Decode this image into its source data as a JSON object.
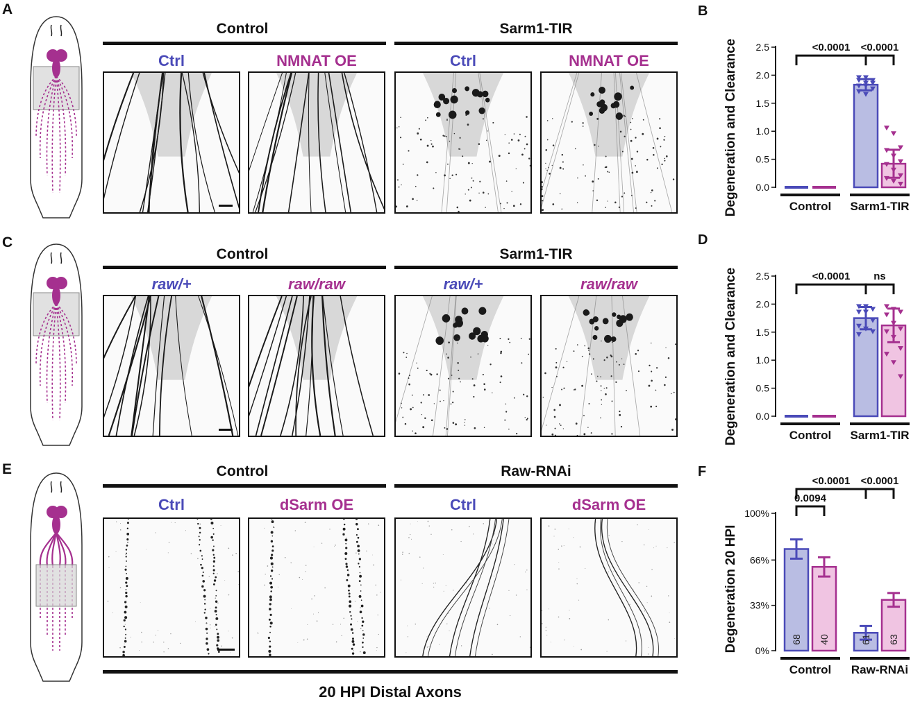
{
  "panels": {
    "A": {
      "letter": "A",
      "group_left": "Control",
      "group_right": "Sarm1-TIR",
      "subs": [
        "Ctrl",
        "NMNAT OE",
        "Ctrl",
        "NMNAT OE"
      ]
    },
    "C": {
      "letter": "C",
      "group_left": "Control",
      "group_right": "Sarm1-TIR",
      "subs": [
        "raw/+",
        "raw/raw",
        "raw/+",
        "raw/raw"
      ]
    },
    "E": {
      "letter": "E",
      "group_left": "Control",
      "group_right": "Raw-RNAi",
      "subs": [
        "Ctrl",
        "dSarm OE",
        "Ctrl",
        "dSarm OE"
      ],
      "footer": "20 HPI Distal Axons"
    }
  },
  "colors": {
    "blue": "#4a4ab8",
    "blue_fill": "#b9bde3",
    "magenta": "#a5308f",
    "magenta_fill": "#f0c4e2",
    "dark": "#111111"
  },
  "chart_data": [
    {
      "letter": "B",
      "type": "bar",
      "ylabel": "Degeneration and Clearance",
      "ylim": [
        0,
        2.5
      ],
      "yticks": [
        "0.0",
        "0.5",
        "1.0",
        "1.5",
        "2.0",
        "2.5"
      ],
      "groups": [
        "Control",
        "Sarm1-TIR"
      ],
      "bars": [
        {
          "group": "Control",
          "color": "blue",
          "mean": 0.0,
          "sd": 0.0
        },
        {
          "group": "Control",
          "color": "magenta",
          "mean": 0.0,
          "sd": 0.0
        },
        {
          "group": "Sarm1-TIR",
          "color": "blue",
          "mean": 1.83,
          "sd": 0.1,
          "points": [
            1.95,
            1.95,
            1.9,
            1.9,
            1.85,
            1.85,
            1.8,
            1.8,
            1.75,
            1.7,
            1.65
          ]
        },
        {
          "group": "Sarm1-TIR",
          "color": "magenta",
          "mean": 0.42,
          "sd": 0.25,
          "points": [
            1.05,
            0.95,
            0.7,
            0.65,
            0.55,
            0.45,
            0.4,
            0.3,
            0.2,
            0.15,
            0.1,
            0.05
          ]
        }
      ],
      "comparisons": [
        {
          "label": "<0.0001",
          "from": 0,
          "to": 2,
          "height": 2.3
        },
        {
          "label": "<0.0001",
          "from": 2,
          "to": 3,
          "height": 2.3
        }
      ]
    },
    {
      "letter": "D",
      "type": "bar",
      "ylabel": "Degeneration and Clearance",
      "ylim": [
        0,
        2.5
      ],
      "yticks": [
        "0.0",
        "0.5",
        "1.0",
        "1.5",
        "2.0",
        "2.5"
      ],
      "groups": [
        "Control",
        "Sarm1-TIR"
      ],
      "bars": [
        {
          "group": "Control",
          "color": "blue",
          "mean": 0.0,
          "sd": 0.0
        },
        {
          "group": "Control",
          "color": "magenta",
          "mean": 0.0,
          "sd": 0.0
        },
        {
          "group": "Sarm1-TIR",
          "color": "blue",
          "mean": 1.75,
          "sd": 0.2,
          "points": [
            1.95,
            1.95,
            1.9,
            1.85,
            1.85,
            1.7,
            1.6,
            1.55,
            1.5,
            1.45
          ]
        },
        {
          "group": "Sarm1-TIR",
          "color": "magenta",
          "mean": 1.62,
          "sd": 0.3,
          "points": [
            1.95,
            1.9,
            1.85,
            1.8,
            1.65,
            1.55,
            1.5,
            1.4,
            1.2,
            1.1,
            0.95,
            0.7
          ]
        }
      ],
      "comparisons": [
        {
          "label": "<0.0001",
          "from": 0,
          "to": 2,
          "height": 2.3
        },
        {
          "label": "ns",
          "from": 2,
          "to": 3,
          "height": 2.3
        }
      ]
    },
    {
      "letter": "F",
      "type": "bar",
      "ylabel": "Degeneration 20 HPI",
      "ylim": [
        0,
        100
      ],
      "ytick_values": [
        0,
        33,
        66,
        100
      ],
      "yticks": [
        "0%",
        "33%",
        "66%",
        "100%"
      ],
      "groups": [
        "Control",
        "Raw-RNAi"
      ],
      "bars": [
        {
          "group": "Control",
          "color": "blue",
          "mean": 74,
          "err": 7,
          "n": "68"
        },
        {
          "group": "Control",
          "color": "magenta",
          "mean": 61,
          "err": 7,
          "n": "40"
        },
        {
          "group": "Raw-RNAi",
          "color": "blue",
          "mean": 13,
          "err": 5,
          "n": "61"
        },
        {
          "group": "Raw-RNAi",
          "color": "magenta",
          "mean": 37,
          "err": 5,
          "n": "63"
        }
      ],
      "comparisons": [
        {
          "label": "0.0094",
          "from": 0,
          "to": 1,
          "height": 90
        },
        {
          "label": "<0.0001",
          "from": 0,
          "to": 2,
          "height": 113
        },
        {
          "label": "<0.0001",
          "from": 2,
          "to": 3,
          "height": 113
        }
      ]
    }
  ]
}
